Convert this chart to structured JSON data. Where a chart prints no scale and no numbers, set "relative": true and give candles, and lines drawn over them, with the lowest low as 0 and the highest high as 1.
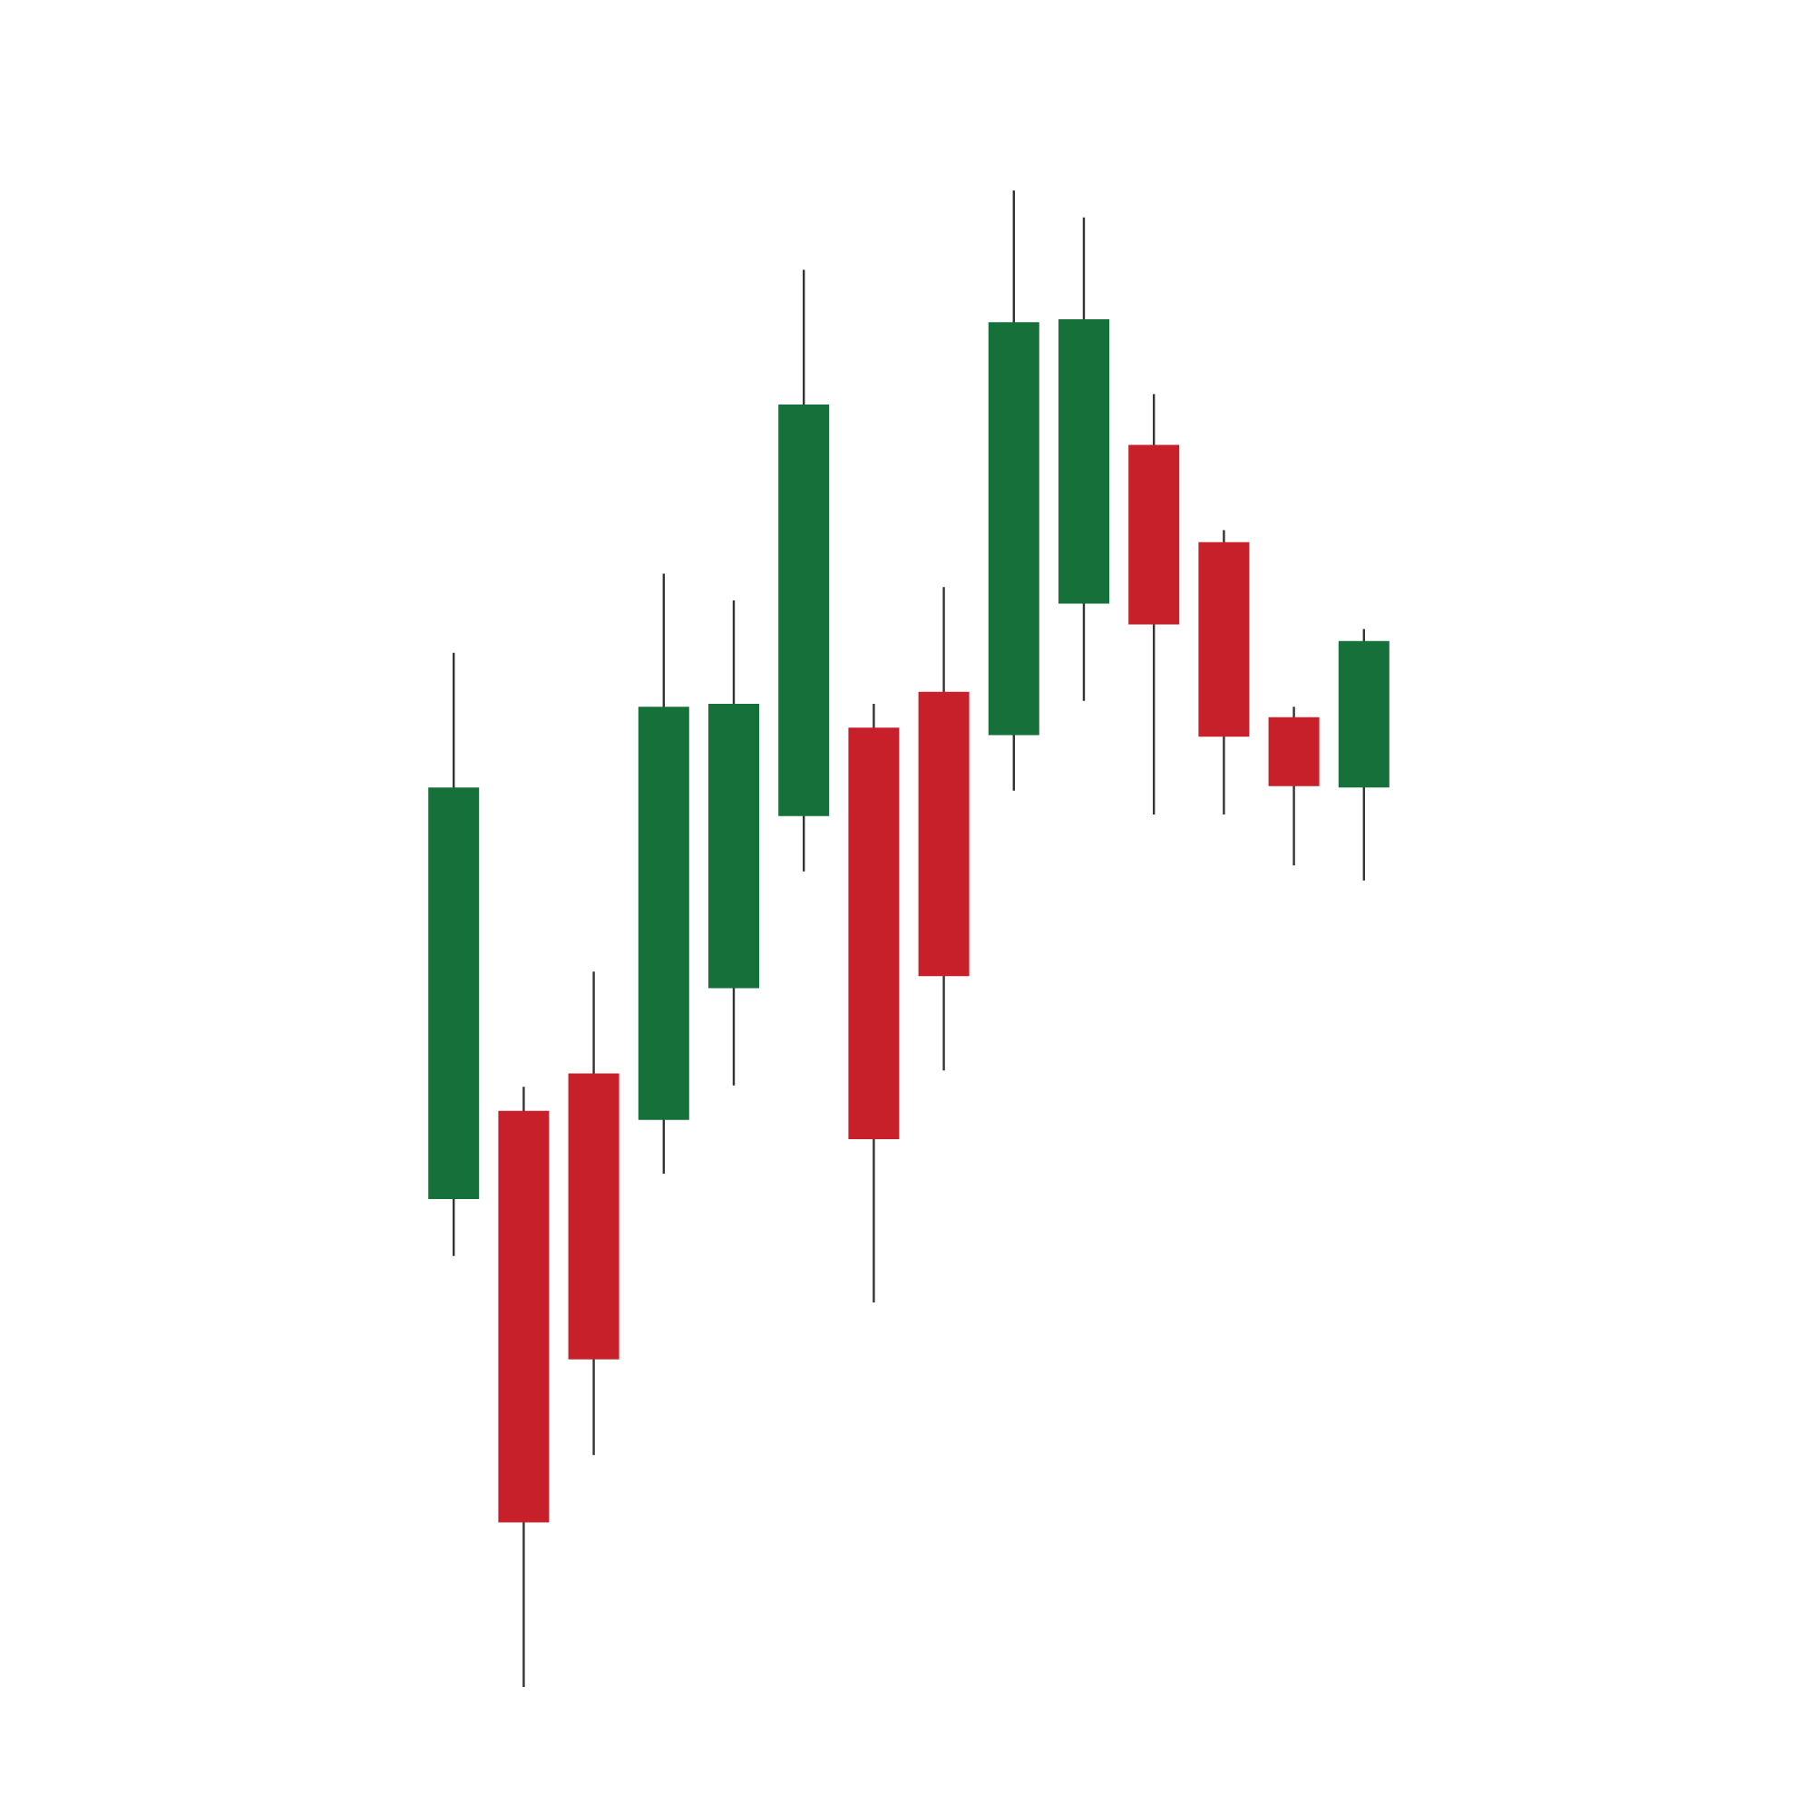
{
  "chart_data": {
    "type": "candlestick",
    "relative": true,
    "categories": [
      null,
      null,
      null,
      null,
      null,
      null,
      null,
      null,
      null,
      null,
      null,
      null,
      null,
      null
    ],
    "ohlc": [
      [
        0.326,
        0.691,
        0.288,
        0.601
      ],
      [
        0.385,
        0.401,
        0,
        0.11
      ],
      [
        0.41,
        0.478,
        0.155,
        0.219
      ],
      [
        0.379,
        0.744,
        0.343,
        0.655
      ],
      [
        0.467,
        0.726,
        0.402,
        0.657
      ],
      [
        0.582,
        0.947,
        0.545,
        0.857
      ],
      [
        0.641,
        0.657,
        0.257,
        0.366
      ],
      [
        0.665,
        0.735,
        0.412,
        0.475
      ],
      [
        0.636,
        1,
        0.599,
        0.912
      ],
      [
        0.724,
        0.982,
        0.659,
        0.914
      ],
      [
        0.83,
        0.864,
        0.583,
        0.71
      ],
      [
        0.765,
        0.773,
        0.583,
        0.635
      ],
      [
        0.648,
        0.655,
        0.549,
        0.602
      ],
      [
        0.601,
        0.707,
        0.539,
        0.699
      ]
    ],
    "colors": [
      "#16703a",
      "#c8202a",
      "#c8202a",
      "#16703a",
      "#16703a",
      "#16703a",
      "#c8202a",
      "#c8202a",
      "#16703a",
      "#16703a",
      "#c8202a",
      "#c8202a",
      "#c8202a",
      "#16703a"
    ]
  }
}
